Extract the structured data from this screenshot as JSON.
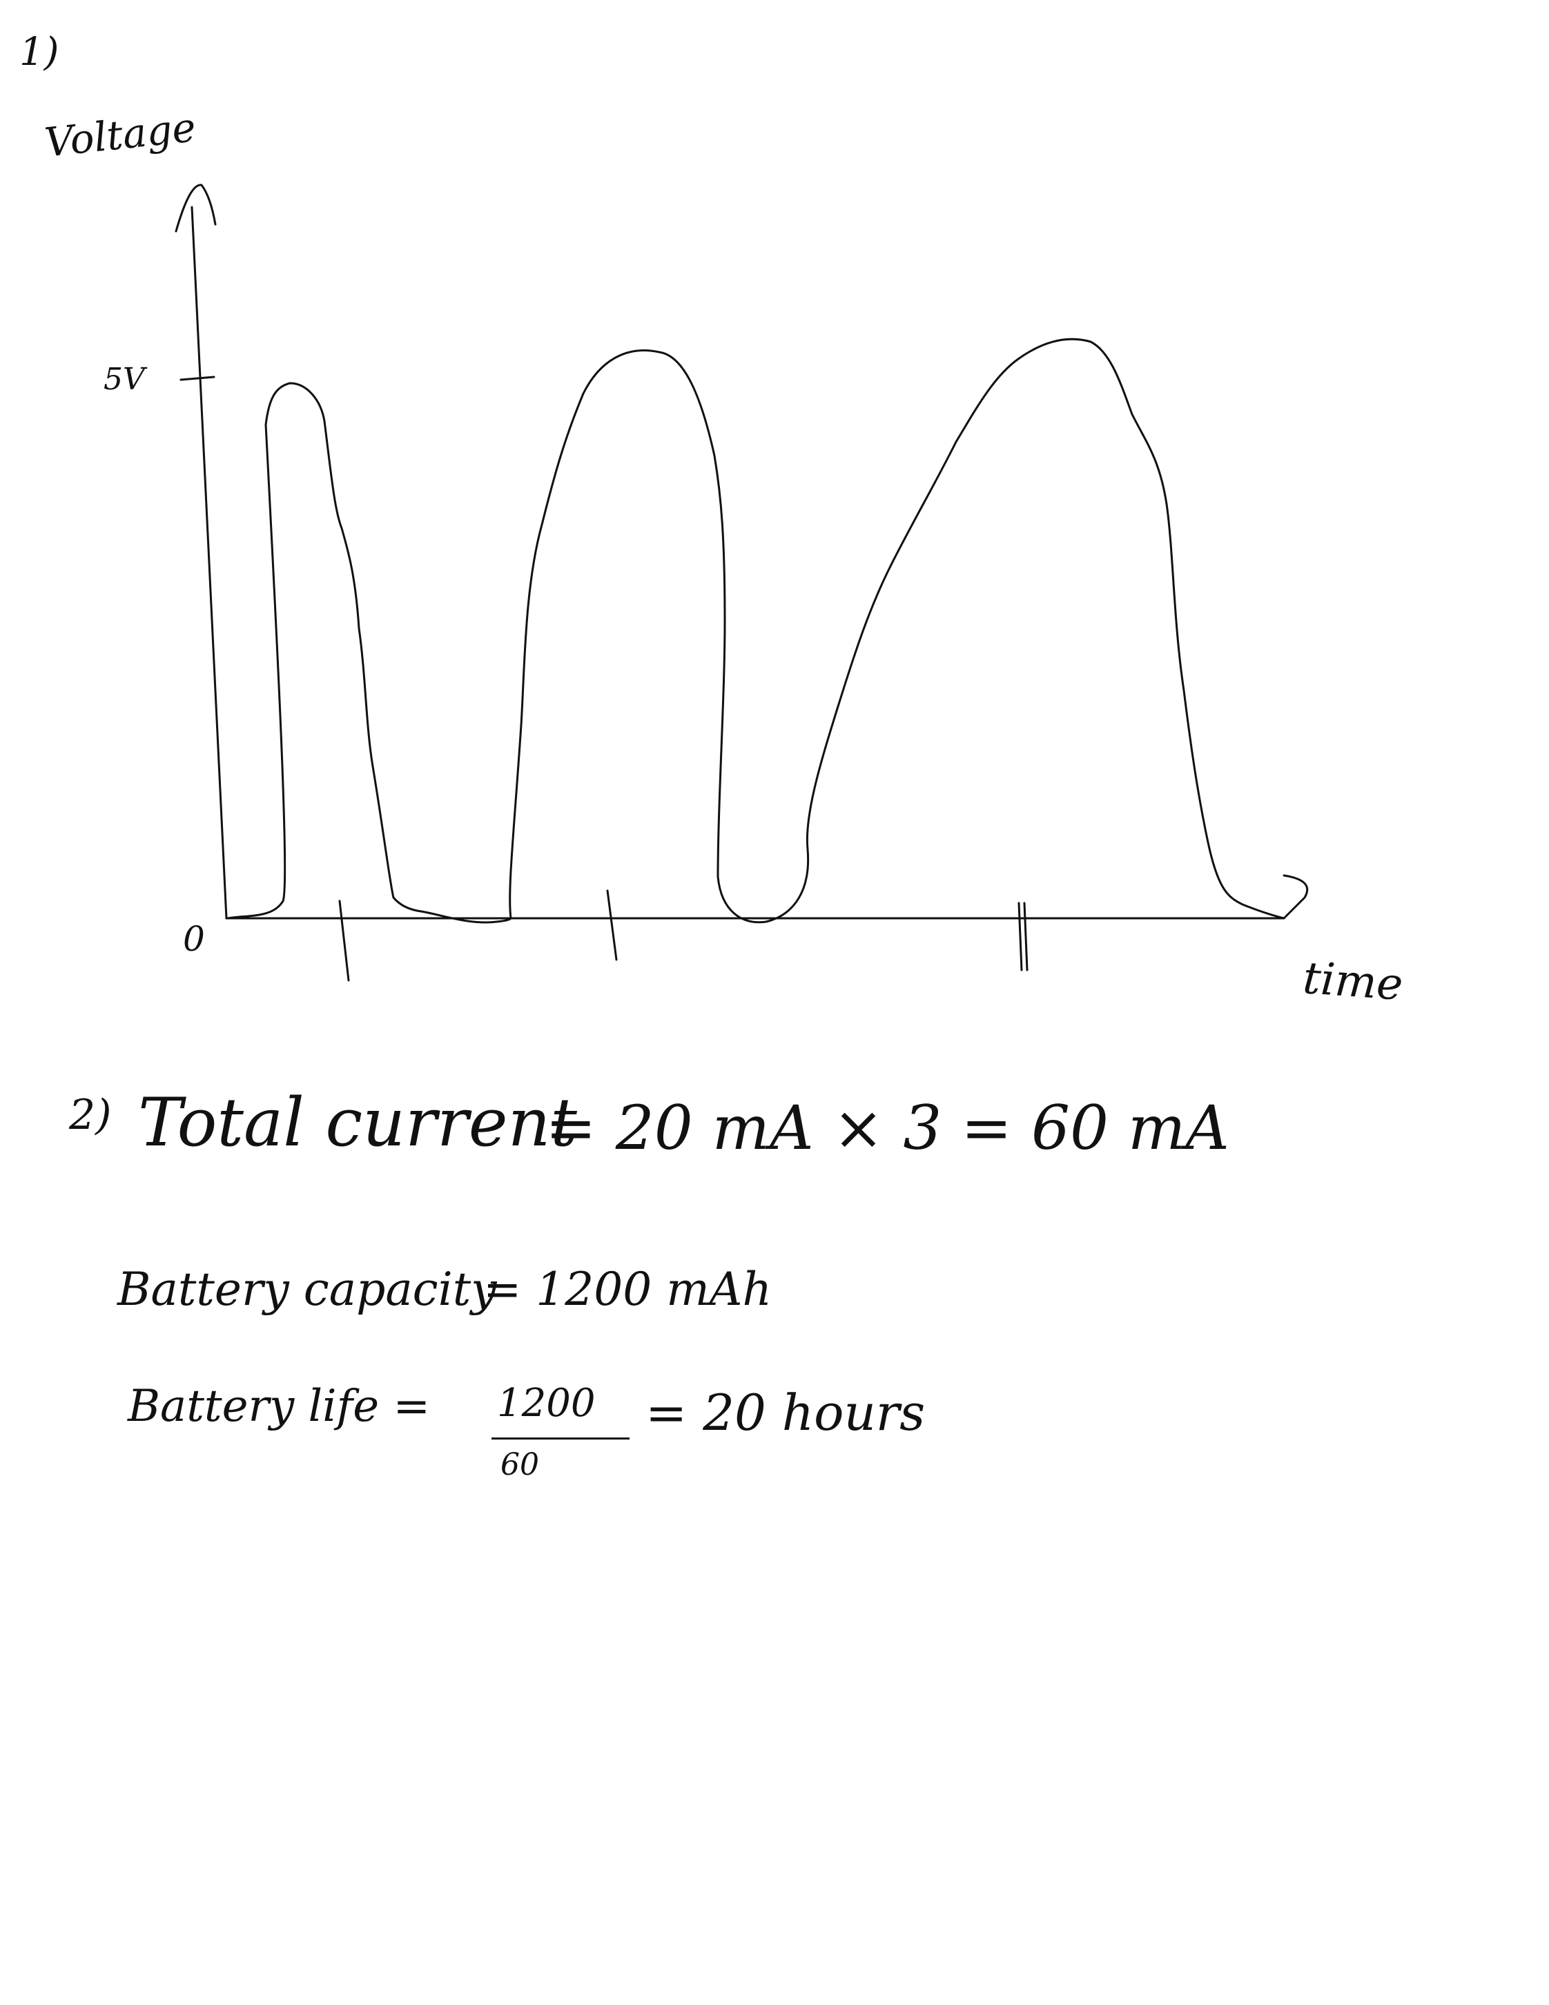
{
  "question_1": {
    "number": "1)",
    "y_axis_label": "Voltage",
    "y_tick_label": "5V",
    "origin_label": "0",
    "x_axis_label": "time"
  },
  "question_2": {
    "number": "2)",
    "total_current_label": "Total current",
    "total_current_expression": "= 20 mA × 3 = 60 mA",
    "battery_capacity_label": "Battery capacity",
    "battery_capacity_value": "= 1200 mAh",
    "battery_life_label": "Battery life =",
    "battery_life_numerator": "1200",
    "battery_life_denominator": "60",
    "battery_life_result": "= 20 hours"
  }
}
